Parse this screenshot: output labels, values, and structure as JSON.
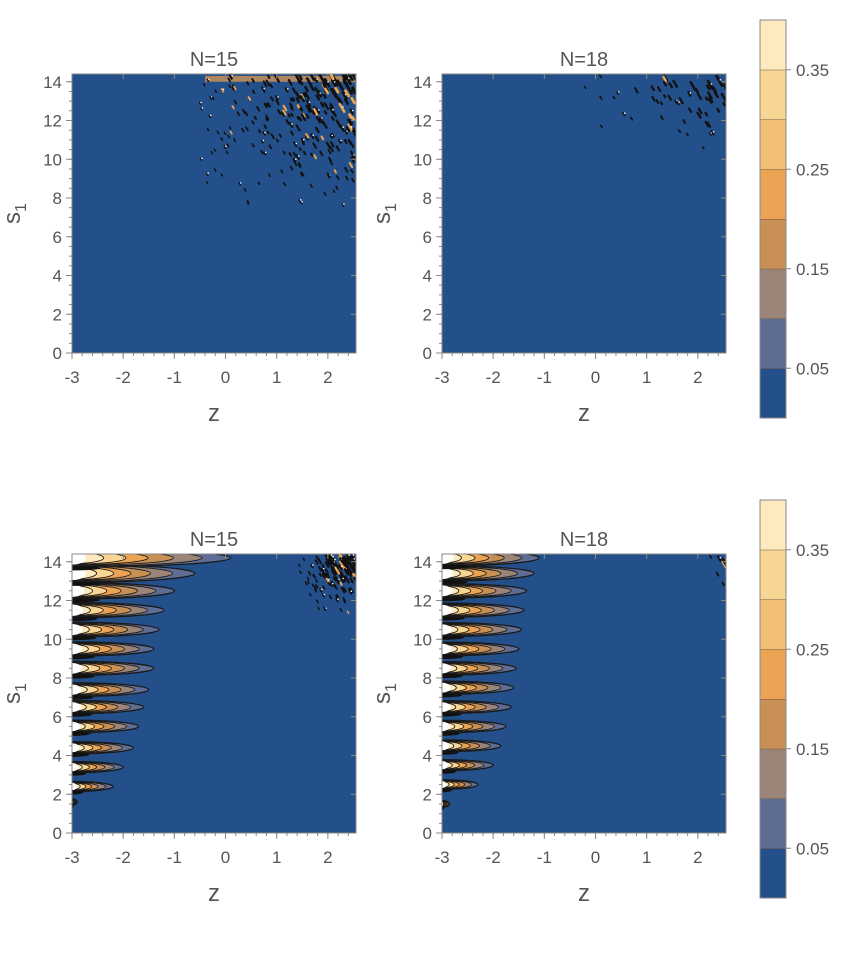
{
  "chart_data": [
    {
      "type": "heatmap",
      "title": "N=15",
      "xlabel": "z",
      "ylabel": "s",
      "ylabel_subscript": "1",
      "xlim": [
        -3,
        2.55
      ],
      "ylim": [
        0,
        14.4
      ],
      "x_ticks": [
        "-3",
        "-2",
        "-1",
        "0",
        "1",
        "2"
      ],
      "y_ticks": [
        "0",
        "2",
        "4",
        "6",
        "8",
        "10",
        "12",
        "14"
      ],
      "background_color": "#23508a",
      "features": {
        "edge_fingers": [],
        "speckle_region": {
          "x": [
            -0.6,
            2.55
          ],
          "y": [
            7.2,
            14.3
          ],
          "count": 260
        },
        "top_band": {
          "x": [
            -0.4,
            2.55
          ],
          "y": [
            14.0,
            14.3
          ]
        }
      }
    },
    {
      "type": "heatmap",
      "title": "N=18",
      "xlabel": "z",
      "ylabel": "s",
      "ylabel_subscript": "1",
      "xlim": [
        -3,
        2.55
      ],
      "ylim": [
        0,
        14.4
      ],
      "x_ticks": [
        "-3",
        "-2",
        "-1",
        "0",
        "1",
        "2"
      ],
      "y_ticks": [
        "0",
        "2",
        "4",
        "6",
        "8",
        "10",
        "12",
        "14"
      ],
      "background_color": "#23508a",
      "features": {
        "edge_fingers": [],
        "speckle_region": {
          "x": [
            -0.5,
            2.55
          ],
          "y": [
            10.2,
            14.3
          ],
          "count": 55
        },
        "top_band": null
      }
    },
    {
      "type": "heatmap",
      "title": "N=15",
      "xlabel": "z",
      "ylabel": "s",
      "ylabel_subscript": "1",
      "xlim": [
        -3,
        2.55
      ],
      "ylim": [
        0,
        14.4
      ],
      "x_ticks": [
        "-3",
        "-2",
        "-1",
        "0",
        "1",
        "2"
      ],
      "y_ticks": [
        "0",
        "2",
        "4",
        "6",
        "8",
        "10",
        "12",
        "14"
      ],
      "background_color": "#23508a",
      "features": {
        "edge_fingers": [
          {
            "y": 1.6,
            "extent": -2.9
          },
          {
            "y": 2.4,
            "extent": -2.2
          },
          {
            "y": 3.4,
            "extent": -2.0
          },
          {
            "y": 4.4,
            "extent": -1.8
          },
          {
            "y": 5.5,
            "extent": -1.7
          },
          {
            "y": 6.5,
            "extent": -1.6
          },
          {
            "y": 7.4,
            "extent": -1.5
          },
          {
            "y": 8.5,
            "extent": -1.4
          },
          {
            "y": 9.5,
            "extent": -1.4
          },
          {
            "y": 10.5,
            "extent": -1.3
          },
          {
            "y": 11.5,
            "extent": -1.2
          },
          {
            "y": 12.5,
            "extent": -1.0
          },
          {
            "y": 13.4,
            "extent": -0.6
          },
          {
            "y": 14.2,
            "extent": 0.1
          }
        ],
        "speckle_region": {
          "x": [
            1.4,
            2.55
          ],
          "y": [
            11.2,
            14.3
          ],
          "count": 120
        },
        "top_band": null
      }
    },
    {
      "type": "heatmap",
      "title": "N=18",
      "xlabel": "z",
      "ylabel": "s",
      "ylabel_subscript": "1",
      "xlim": [
        -3,
        2.55
      ],
      "ylim": [
        0,
        14.4
      ],
      "x_ticks": [
        "-3",
        "-2",
        "-1",
        "0",
        "1",
        "2"
      ],
      "y_ticks": [
        "0",
        "2",
        "4",
        "6",
        "8",
        "10",
        "12",
        "14"
      ],
      "background_color": "#23508a",
      "features": {
        "edge_fingers": [
          {
            "y": 1.5,
            "extent": -2.85
          },
          {
            "y": 2.5,
            "extent": -2.3
          },
          {
            "y": 3.5,
            "extent": -2.0
          },
          {
            "y": 4.5,
            "extent": -1.85
          },
          {
            "y": 5.5,
            "extent": -1.75
          },
          {
            "y": 6.5,
            "extent": -1.65
          },
          {
            "y": 7.5,
            "extent": -1.6
          },
          {
            "y": 8.5,
            "extent": -1.55
          },
          {
            "y": 9.5,
            "extent": -1.5
          },
          {
            "y": 10.5,
            "extent": -1.45
          },
          {
            "y": 11.5,
            "extent": -1.4
          },
          {
            "y": 12.5,
            "extent": -1.35
          },
          {
            "y": 13.4,
            "extent": -1.2
          },
          {
            "y": 14.2,
            "extent": -1.1
          }
        ],
        "speckle_region": {
          "x": [
            2.2,
            2.55
          ],
          "y": [
            12.2,
            14.3
          ],
          "count": 6
        },
        "top_band": null
      }
    }
  ],
  "colorbars": [
    {
      "ticks": [
        "0.05",
        "0.15",
        "0.25",
        "0.35"
      ],
      "tick_values": [
        0.05,
        0.15,
        0.25,
        0.35
      ],
      "range": [
        0,
        0.4
      ],
      "levels": [
        {
          "from": 0.0,
          "to": 0.05,
          "color": "#23508a"
        },
        {
          "from": 0.05,
          "to": 0.1,
          "color": "#5f6d95"
        },
        {
          "from": 0.1,
          "to": 0.15,
          "color": "#9a8578"
        },
        {
          "from": 0.15,
          "to": 0.2,
          "color": "#c99055"
        },
        {
          "from": 0.2,
          "to": 0.25,
          "color": "#eba453"
        },
        {
          "from": 0.25,
          "to": 0.3,
          "color": "#f3be76"
        },
        {
          "from": 0.3,
          "to": 0.35,
          "color": "#f8d592"
        },
        {
          "from": 0.35,
          "to": 0.4,
          "color": "#fdeabf"
        }
      ]
    },
    {
      "ticks": [
        "0.05",
        "0.15",
        "0.25",
        "0.35"
      ],
      "tick_values": [
        0.05,
        0.15,
        0.25,
        0.35
      ],
      "range": [
        0,
        0.4
      ],
      "levels": [
        {
          "from": 0.0,
          "to": 0.05,
          "color": "#23508a"
        },
        {
          "from": 0.05,
          "to": 0.1,
          "color": "#5f6d95"
        },
        {
          "from": 0.1,
          "to": 0.15,
          "color": "#9a8578"
        },
        {
          "from": 0.15,
          "to": 0.2,
          "color": "#c99055"
        },
        {
          "from": 0.2,
          "to": 0.25,
          "color": "#eba453"
        },
        {
          "from": 0.25,
          "to": 0.3,
          "color": "#f3be76"
        },
        {
          "from": 0.3,
          "to": 0.35,
          "color": "#f8d592"
        },
        {
          "from": 0.35,
          "to": 0.4,
          "color": "#fdeabf"
        }
      ]
    }
  ],
  "colors": {
    "axis": "#888888",
    "text": "#555555",
    "contour_line": "#1a1a1a",
    "speckle": "#111111",
    "speckle_warm": "#f0a64a"
  }
}
